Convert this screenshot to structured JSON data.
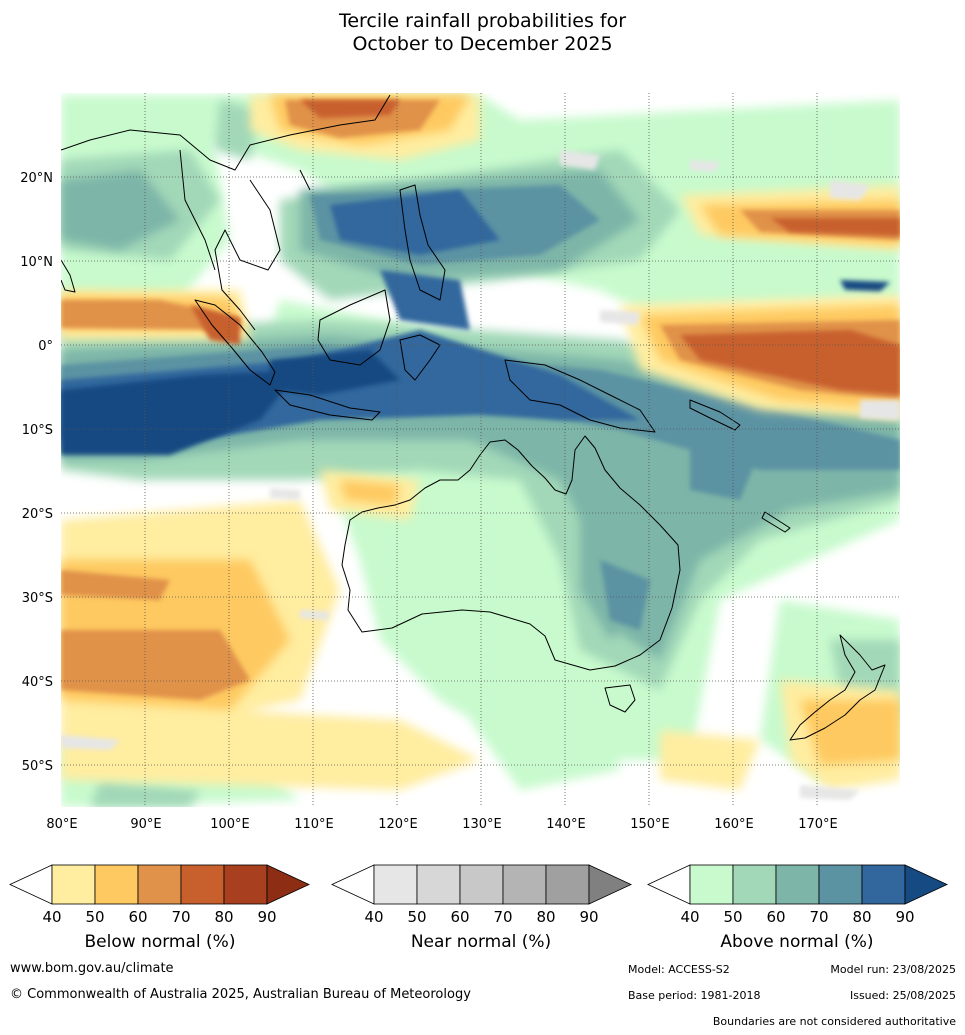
{
  "title": {
    "line1": "Tercile rainfall probabilities for",
    "line2": "October to December 2025"
  },
  "axes": {
    "lon_ticks": [
      "80°E",
      "90°E",
      "100°E",
      "110°E",
      "120°E",
      "130°E",
      "140°E",
      "150°E",
      "160°E",
      "170°E"
    ],
    "lat_ticks": [
      "20°N",
      "10°N",
      "0°",
      "10°S",
      "20°S",
      "30°S",
      "40°S",
      "50°S"
    ],
    "lon_range": [
      80,
      180
    ],
    "lat_range": [
      -55,
      30
    ]
  },
  "colorbars": [
    {
      "id": "below",
      "title": "Below normal (%)",
      "ticks": [
        "40",
        "50",
        "60",
        "70",
        "80",
        "90"
      ],
      "colors": [
        "#ffffff",
        "#ffeda0",
        "#fec960",
        "#e0924a",
        "#c8602e",
        "#a8401f",
        "#8c2d14"
      ]
    },
    {
      "id": "near",
      "title": "Near normal (%)",
      "ticks": [
        "40",
        "50",
        "60",
        "70",
        "80",
        "90"
      ],
      "colors": [
        "#ffffff",
        "#e6e6e6",
        "#d7d7d7",
        "#c8c8c8",
        "#b4b4b4",
        "#a0a0a0",
        "#808080"
      ]
    },
    {
      "id": "above",
      "title": "Above normal (%)",
      "ticks": [
        "40",
        "50",
        "60",
        "70",
        "80",
        "90"
      ],
      "colors": [
        "#ffffff",
        "#c8facd",
        "#a2d8b8",
        "#7db5a8",
        "#5b93a3",
        "#32679d",
        "#164a82"
      ]
    }
  ],
  "footer": {
    "url": "www.bom.gov.au/climate",
    "copyright": "© Commonwealth of Australia 2025, Australian Bureau of Meteorology",
    "model": "Model: ACCESS-S2",
    "model_run": "Model run: 23/08/2025",
    "base_period": "Base period: 1981-2018",
    "issued": "Issued: 25/08/2025",
    "disclaimer": "Boundaries are not considered authoritative"
  }
}
